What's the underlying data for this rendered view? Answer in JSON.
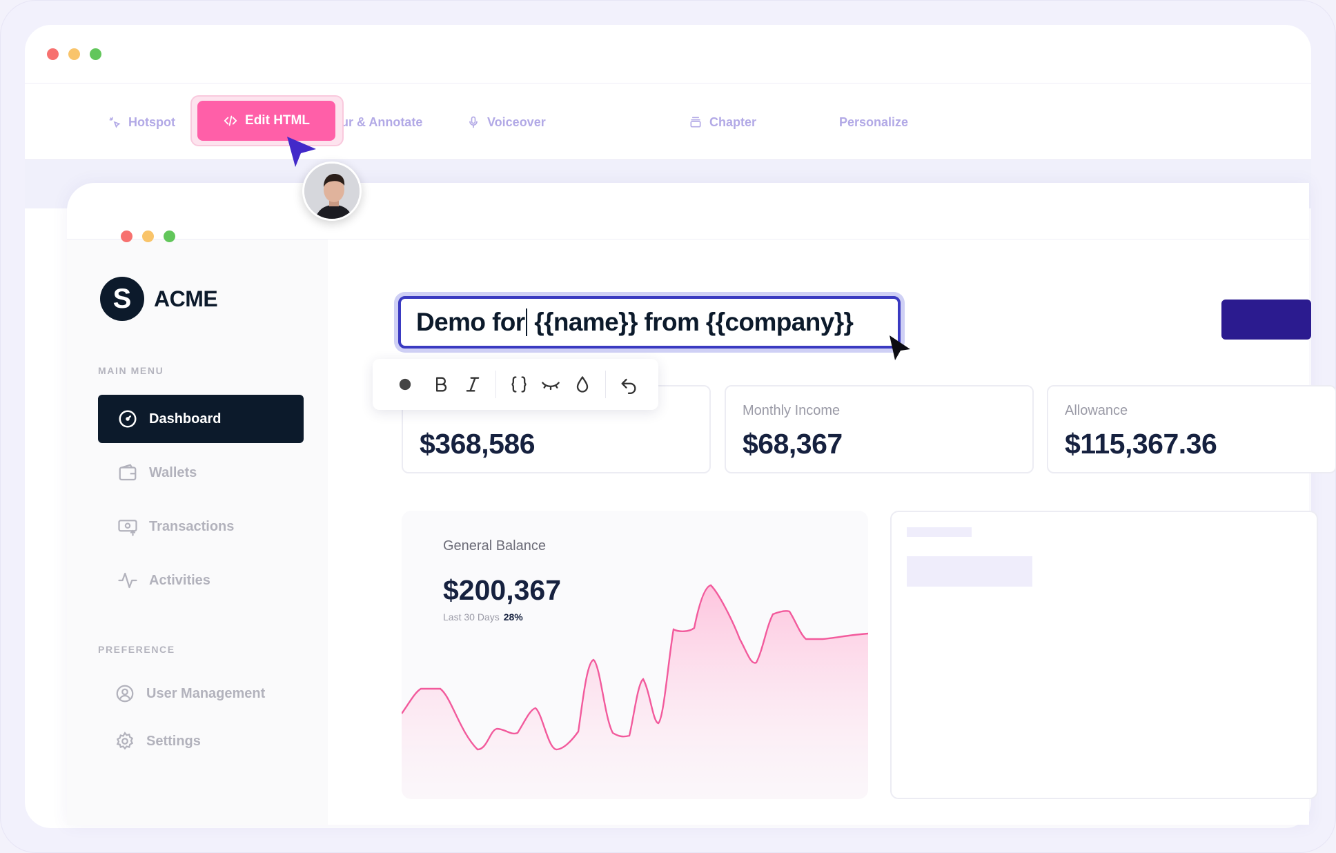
{
  "toolbar": {
    "tools": [
      {
        "label": "Hotspot",
        "icon": "sparkle-icon"
      },
      {
        "label": "Edit HTML",
        "icon": "code-icon"
      },
      {
        "label": "Blur & Annotate",
        "icon": "dot-icon"
      },
      {
        "label": "Voiceover",
        "icon": "microphone-icon"
      },
      {
        "label": "Chapter",
        "icon": "layers-icon"
      },
      {
        "label": "Personalize",
        "icon": ""
      }
    ]
  },
  "brand": {
    "mark": "S",
    "name": "ACME"
  },
  "sidebar": {
    "main_menu_label": "MAIN MENU",
    "preference_label": "PREFERENCE",
    "main_items": [
      {
        "label": "Dashboard",
        "icon": "gauge-icon",
        "active": true
      },
      {
        "label": "Wallets",
        "icon": "wallet-icon"
      },
      {
        "label": "Transactions",
        "icon": "transactions-icon"
      },
      {
        "label": "Activities",
        "icon": "activity-icon"
      }
    ],
    "preference_items": [
      {
        "label": "User Management",
        "icon": "user-circle-icon"
      },
      {
        "label": "Settings",
        "icon": "gear-icon"
      }
    ]
  },
  "editor": {
    "text_before_caret": "Demo for",
    "text_after_caret": " {{name}} from {{company}}"
  },
  "format_bar": {
    "icons": [
      "dot-icon",
      "bold-icon",
      "italic-icon",
      "braces-icon",
      "eye-closed-icon",
      "drop-icon",
      "undo-icon"
    ]
  },
  "stats": [
    {
      "label": "",
      "value": "$368,586"
    },
    {
      "label": "Monthly Income",
      "value": "$68,367"
    },
    {
      "label": "Allowance",
      "value": "$115,367.36"
    }
  ],
  "balance": {
    "label": "General Balance",
    "value": "$200,367",
    "period": "Last 30 Days",
    "change": "28%"
  },
  "colors": {
    "accent_pink": "#ff5fa8",
    "navy": "#0c1a2b",
    "indigo": "#2b1b8f",
    "tool_text": "#b2a9e6"
  }
}
